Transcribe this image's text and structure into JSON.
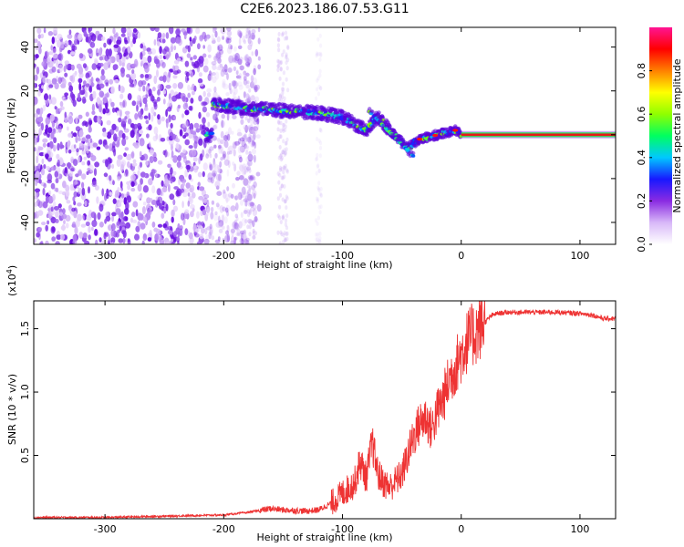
{
  "title": "C2E6.2023.186.07.53.G11",
  "chart_data": [
    {
      "type": "heatmap",
      "xlabel": "Height of straight line (km)",
      "ylabel": "Frequency (Hz)",
      "xlim": [
        -360,
        130
      ],
      "ylim": [
        -50,
        49
      ],
      "x_ticks": [
        "-300",
        "-200",
        "-100",
        "0",
        "100"
      ],
      "y_ticks": [
        "40",
        "20",
        "0",
        "-20",
        "-40"
      ],
      "colorbar": {
        "label": "Normalized spectral amplitude",
        "range": [
          0,
          1
        ],
        "ticks": [
          "0.0",
          "0.2",
          "0.4",
          "0.6",
          "0.8"
        ],
        "colors": [
          "#ffffff",
          "#d8b8f8",
          "#8a2be2",
          "#1818ff",
          "#00c8ff",
          "#00ff60",
          "#90ff00",
          "#ffff00",
          "#ff8000",
          "#ff0000",
          "#ff1493"
        ]
      },
      "features": {
        "noise_region_km": [
          -360,
          -180
        ],
        "signal_path": [
          {
            "x": -210,
            "f": 14
          },
          {
            "x": -180,
            "f": 12
          },
          {
            "x": -150,
            "f": 11
          },
          {
            "x": -120,
            "f": 10
          },
          {
            "x": -100,
            "f": 8
          },
          {
            "x": -80,
            "f": 2
          },
          {
            "x": -70,
            "f": 8
          },
          {
            "x": -60,
            "f": 2
          },
          {
            "x": -45,
            "f": -6
          },
          {
            "x": -35,
            "f": -2
          },
          {
            "x": -20,
            "f": 0
          },
          {
            "x": -5,
            "f": 2
          },
          {
            "x": 0,
            "f": 0
          },
          {
            "x": 130,
            "f": 0
          }
        ],
        "steady_line": {
          "x_start": 0,
          "x_end": 130,
          "f": 0
        }
      }
    },
    {
      "type": "line",
      "xlabel": "Height of straight line (km)",
      "ylabel": "SNR (10 * v/v)",
      "exponent_label": "(x10",
      "exponent_power": "4",
      "exponent_close": ")",
      "xlim": [
        -360,
        130
      ],
      "ylim": [
        0,
        1.72
      ],
      "x_ticks": [
        "-300",
        "-200",
        "-100",
        "0",
        "100"
      ],
      "y_ticks": [
        "1.5",
        "1.0",
        "0.5"
      ],
      "line_color": "#ee3333",
      "x": [
        -360,
        -300,
        -250,
        -200,
        -180,
        -160,
        -150,
        -130,
        -120,
        -110,
        -100,
        -90,
        -85,
        -80,
        -75,
        -70,
        -65,
        -60,
        -55,
        -50,
        -45,
        -40,
        -35,
        -30,
        -25,
        -20,
        -15,
        -10,
        -5,
        0,
        5,
        10,
        15,
        20,
        25,
        30,
        40,
        60,
        80,
        100,
        110,
        120,
        130
      ],
      "y": [
        0.01,
        0.01,
        0.02,
        0.03,
        0.05,
        0.08,
        0.07,
        0.06,
        0.07,
        0.12,
        0.2,
        0.28,
        0.45,
        0.32,
        0.6,
        0.35,
        0.28,
        0.25,
        0.3,
        0.35,
        0.5,
        0.65,
        0.75,
        0.8,
        0.7,
        0.85,
        0.95,
        1.1,
        1.2,
        1.3,
        1.4,
        1.45,
        1.5,
        1.55,
        1.6,
        1.62,
        1.63,
        1.63,
        1.63,
        1.62,
        1.61,
        1.58,
        1.58
      ]
    }
  ]
}
